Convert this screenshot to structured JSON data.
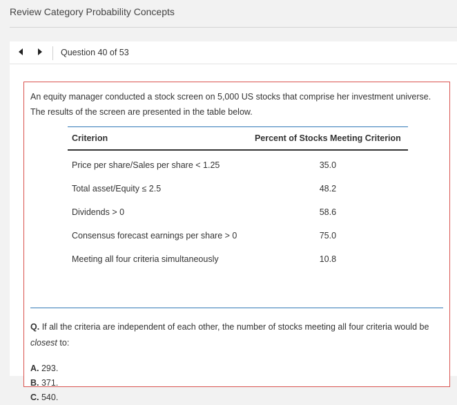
{
  "header": {
    "title": "Review Category Probability Concepts"
  },
  "nav": {
    "counter": "Question 40 of 53"
  },
  "question": {
    "stem_line1": "An equity manager conducted a stock screen on 5,000 US stocks that comprise her investment universe.",
    "stem_line2": "The results of the screen are presented in the table below.",
    "table": {
      "headers": [
        "Criterion",
        "Percent of Stocks Meeting Criterion"
      ],
      "rows": [
        {
          "criterion": "Price per share/Sales per share < 1.25",
          "percent": "35.0"
        },
        {
          "criterion": "Total asset/Equity ≤ 2.5",
          "percent": "48.2"
        },
        {
          "criterion": "Dividends > 0",
          "percent": "58.6"
        },
        {
          "criterion": "Consensus forecast earnings per share > 0",
          "percent": "75.0"
        },
        {
          "criterion": "Meeting all four criteria simultaneously",
          "percent": "10.8"
        }
      ]
    },
    "prompt_label": "Q.",
    "prompt_line1": "If all the criteria are independent of each other, the number of stocks meeting all four criteria would be",
    "prompt_emphasis": "closest",
    "prompt_tail": "to:",
    "answers": [
      {
        "letter": "A.",
        "text": "293."
      },
      {
        "letter": "B.",
        "text": "371."
      },
      {
        "letter": "C.",
        "text": "540."
      }
    ]
  }
}
